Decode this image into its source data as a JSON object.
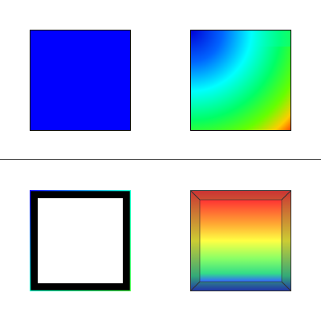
{
  "panels": [
    {
      "id": "solid-color",
      "fill": "#0000ff",
      "border": "#000000"
    },
    {
      "id": "colormap-gradient",
      "stops": [
        "#0000ff",
        "#00ffff",
        "#00ff00",
        "#ffff00",
        "#ff0000"
      ],
      "border": "#000000"
    },
    {
      "id": "wireframe-grid",
      "frame_color": "#000000",
      "grid_colors": [
        "#0000ff",
        "#00ffff",
        "#00ff00",
        "#ffff00"
      ],
      "grid_lines": 15
    },
    {
      "id": "shaded-box",
      "stops": [
        "#ff3030",
        "#ff9933",
        "#ffff33",
        "#88ff66",
        "#22cc99",
        "#3355ff"
      ],
      "edge_color": "#333333"
    }
  ],
  "divider": {
    "color": "#333333"
  }
}
